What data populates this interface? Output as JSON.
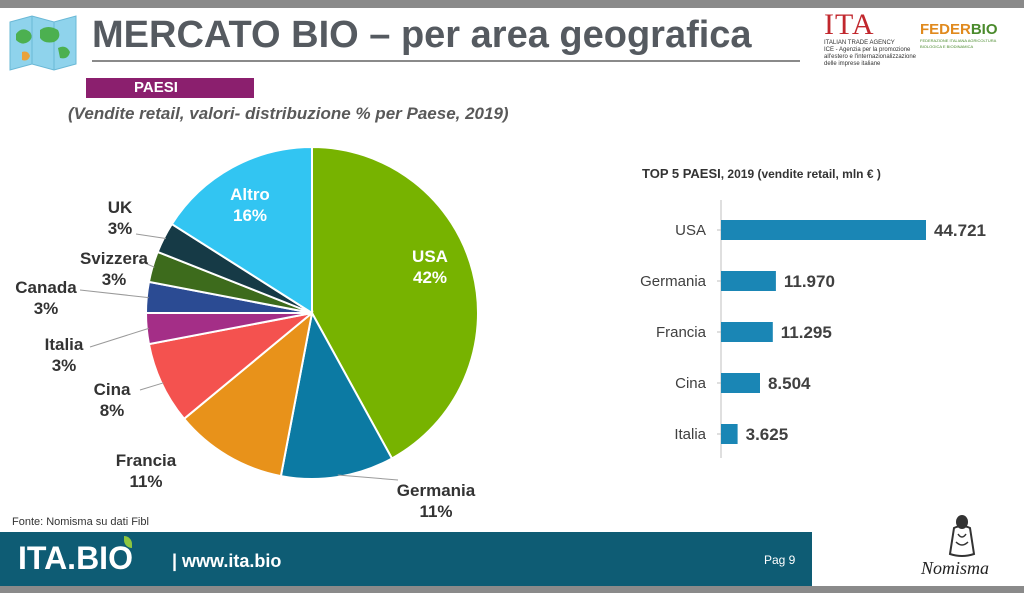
{
  "header": {
    "title": "MERCATO BIO – per area geografica",
    "badge": "PAESI",
    "subtitle": "(Vendite retail, valori- distribuzione % per Paese, 2019)"
  },
  "logos": {
    "ita_big": "ITA",
    "ita_line1": "ITALIAN TRADE AGENCY",
    "ita_line2": "ICE - Agenzia per la promozione all'estero e l'internazionalizzazione delle imprese italiane",
    "feder_a": "FEDER",
    "feder_b": "BIO",
    "feder_small": "FEDERAZIONE ITALIANA AGRICOLTURA BIOLOGICA E BIODINAMICA"
  },
  "chart_data": [
    {
      "type": "pie",
      "slices": [
        {
          "label": "USA",
          "value": 42,
          "pct": "42%",
          "color": "#77b300"
        },
        {
          "label": "Germania",
          "value": 11,
          "pct": "11%",
          "color": "#0c7aa3"
        },
        {
          "label": "Francia",
          "value": 11,
          "pct": "11%",
          "color": "#e8921a"
        },
        {
          "label": "Cina",
          "value": 8,
          "pct": "8%",
          "color": "#f4524f"
        },
        {
          "label": "Italia",
          "value": 3,
          "pct": "3%",
          "color": "#a42e87"
        },
        {
          "label": "Canada",
          "value": 3,
          "pct": "3%",
          "color": "#2b4b93"
        },
        {
          "label": "Svizzera",
          "value": 3,
          "pct": "3%",
          "color": "#3d6b1c"
        },
        {
          "label": "UK",
          "value": 3,
          "pct": "3%",
          "color": "#163a46"
        },
        {
          "label": "Altro",
          "value": 16,
          "pct": "16%",
          "color": "#32c5f2"
        }
      ]
    },
    {
      "type": "bar",
      "orientation": "horizontal",
      "title": "TOP 5 PAESI",
      "title_suffix": ", 2019 (vendite retail, mln € )",
      "categories": [
        "USA",
        "Germania",
        "Francia",
        "Cina",
        "Italia"
      ],
      "values": [
        44721,
        11970,
        11295,
        8504,
        3625
      ],
      "value_labels": [
        "44.721",
        "11.970",
        "11.295",
        "8.504",
        "3.625"
      ],
      "color": "#1a86b5"
    }
  ],
  "footer": {
    "source": "Fonte: Nomisma su dati Fibl",
    "brand": "ITA.BIO",
    "url": "| www.ita.bio",
    "page": "Pag 9",
    "partner": "Nomisma"
  }
}
